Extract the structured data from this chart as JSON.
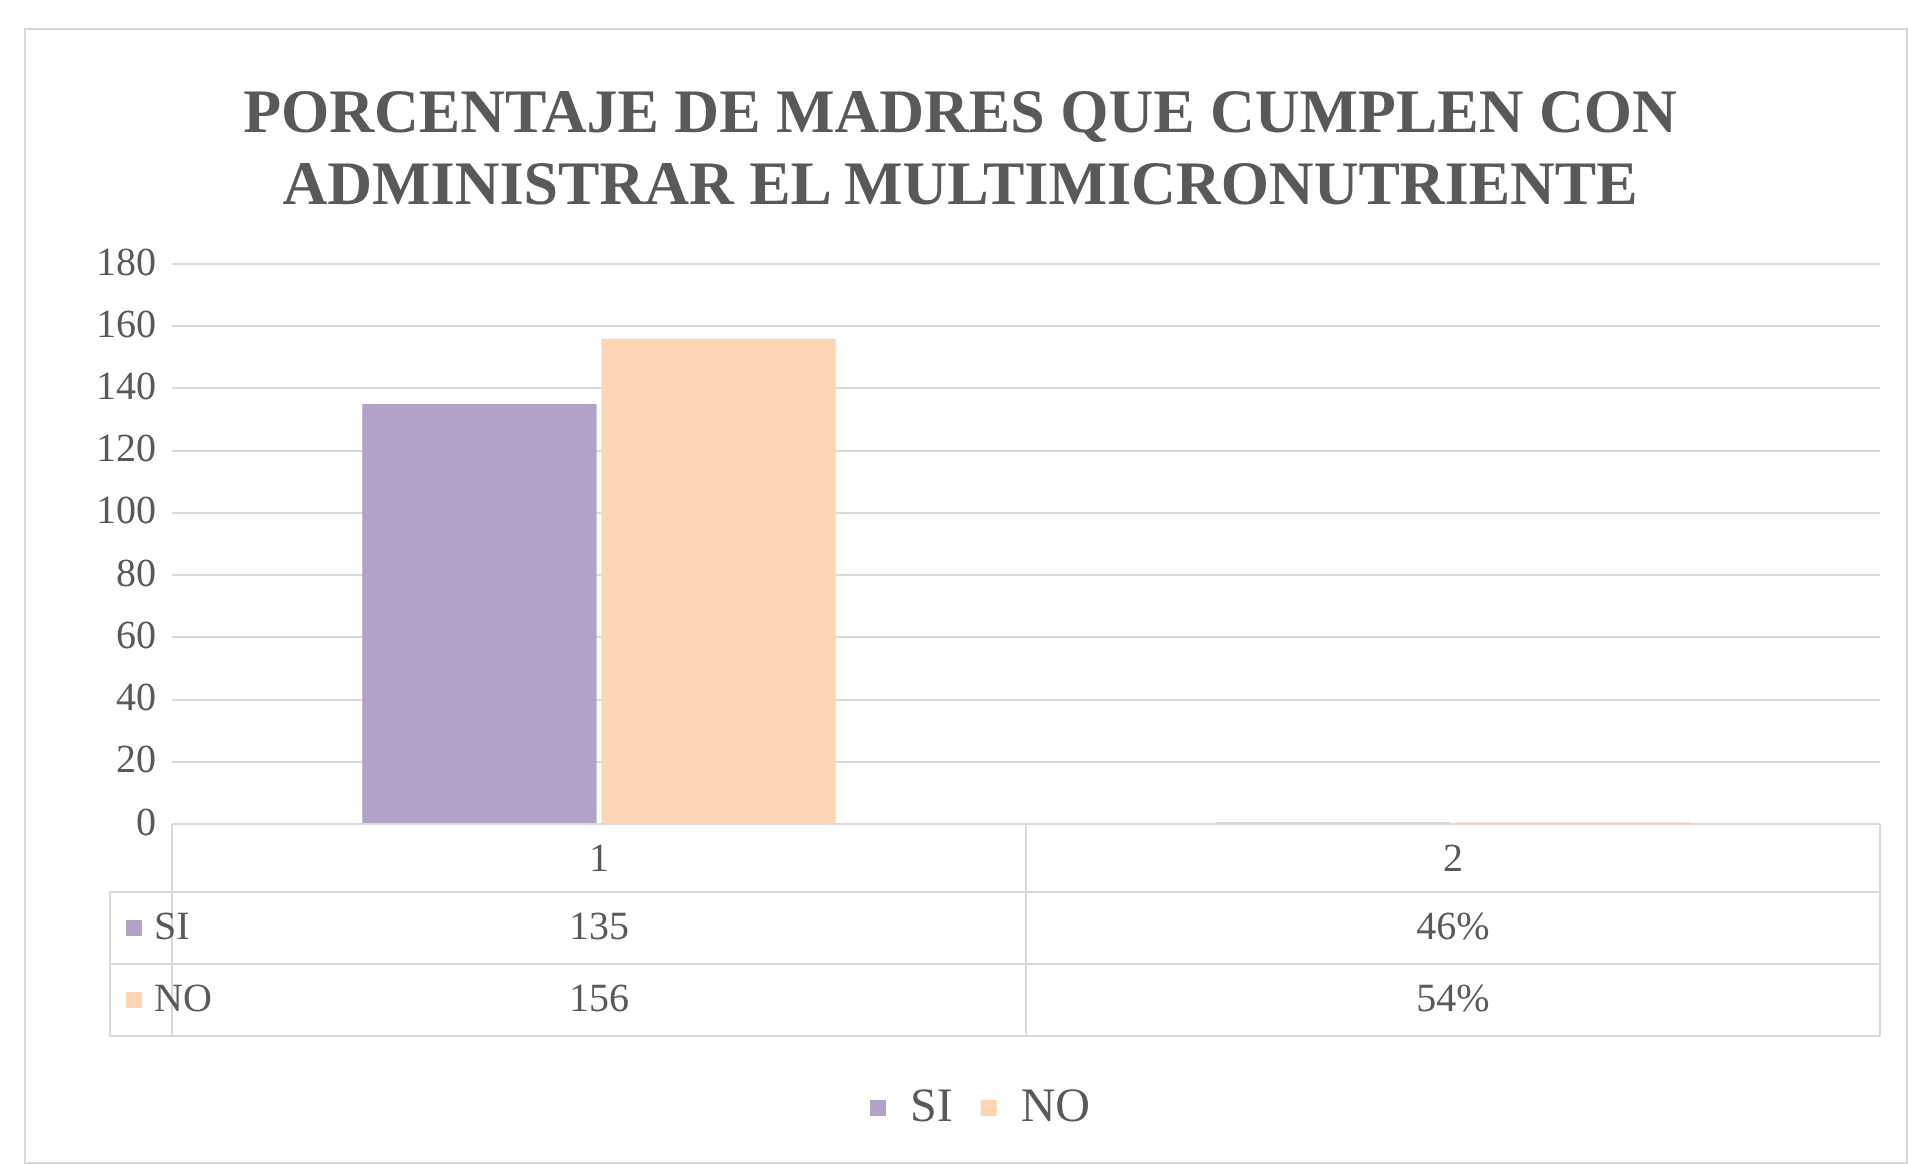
{
  "chart_data": {
    "type": "bar",
    "title": "PORCENTAJE DE MADRES QUE CUMPLEN CON ADMINISTRAR EL MULTIMICRONUTRIENTE",
    "categories": [
      "1",
      "2"
    ],
    "series": [
      {
        "name": "SI",
        "color": "#b3a2c7",
        "values": [
          135,
          0.46
        ],
        "value_labels": [
          "135",
          "46%"
        ]
      },
      {
        "name": "NO",
        "color": "#fcd5b5",
        "values": [
          156,
          0.54
        ],
        "value_labels": [
          "156",
          "54%"
        ]
      }
    ],
    "ylim": [
      0,
      180
    ],
    "yticks": [
      0,
      20,
      40,
      60,
      80,
      100,
      120,
      140,
      160,
      180
    ],
    "grid": "y",
    "legend": "bottom"
  }
}
